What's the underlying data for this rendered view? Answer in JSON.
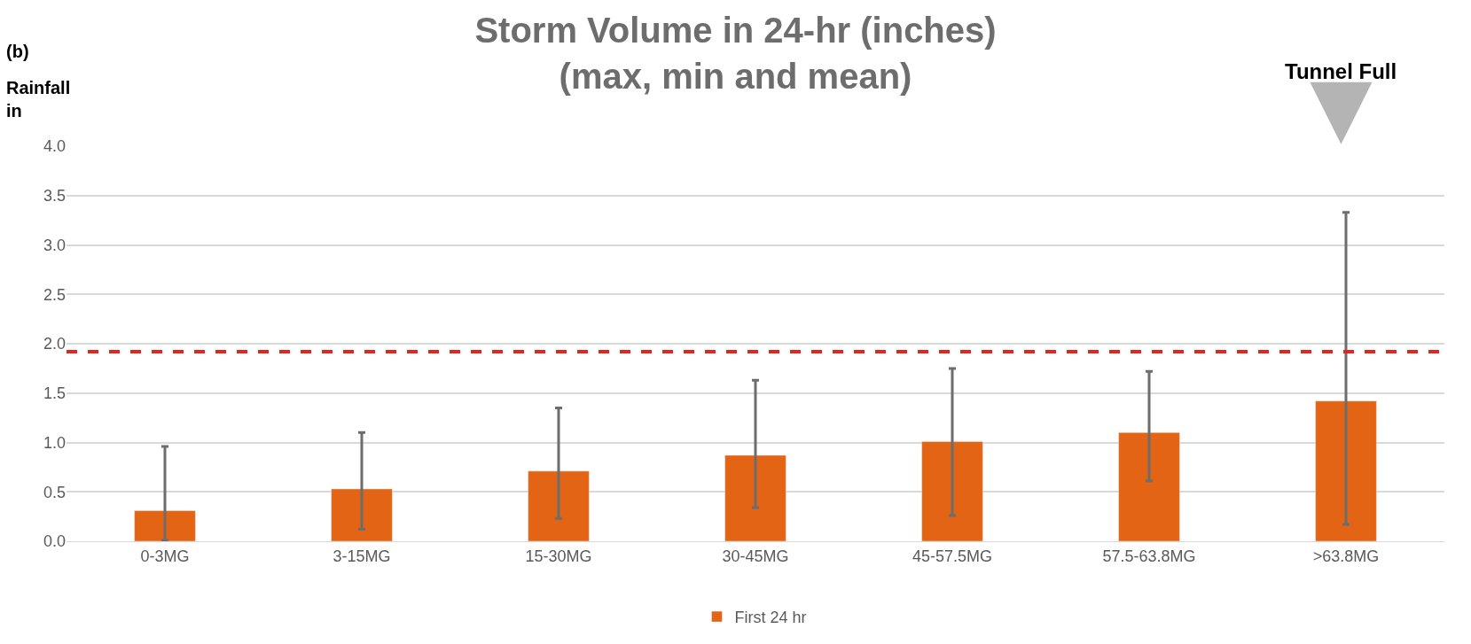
{
  "chart_data": {
    "type": "bar",
    "title": "Storm Volume in 24-hr (inches)\n(max, min and mean)",
    "ylabel": "Rainfall in",
    "categories": [
      "0-3MG",
      "3-15MG",
      "15-30MG",
      "30-45MG",
      "45-57.5MG",
      "57.5-63.8MG",
      ">63.8MG"
    ],
    "series": [
      {
        "name": "First 24 hr",
        "color": "#e36414",
        "values": [
          0.31,
          0.53,
          0.71,
          0.87,
          1.01,
          1.1,
          1.42
        ],
        "errors": [
          [
            0.01,
            0.96
          ],
          [
            0.12,
            1.1
          ],
          [
            0.23,
            1.35
          ],
          [
            0.34,
            1.63
          ],
          [
            0.26,
            1.75
          ],
          [
            0.61,
            1.72
          ],
          [
            0.17,
            3.33
          ]
        ]
      }
    ],
    "ylim": [
      0,
      4
    ],
    "yticks": [
      {
        "value": 0,
        "label": "0.0"
      },
      {
        "value": 0.5,
        "label": "0.5"
      },
      {
        "value": 1,
        "label": "1.0"
      },
      {
        "value": 1.5,
        "label": "1.5"
      },
      {
        "value": 2,
        "label": "2.0"
      },
      {
        "value": 2.5,
        "label": "2.5"
      },
      {
        "value": 3,
        "label": "3.0"
      },
      {
        "value": 3.5,
        "label": "3.5"
      },
      {
        "value": 4,
        "label": "4.0"
      }
    ],
    "ref_lines": [
      {
        "axis": "y",
        "value": 1.92,
        "color": "#e8231e",
        "line_style": "dashed"
      }
    ],
    "annotations": [
      "(b)",
      "Tunnel Full"
    ],
    "grid": "y",
    "legend": "bottom"
  }
}
